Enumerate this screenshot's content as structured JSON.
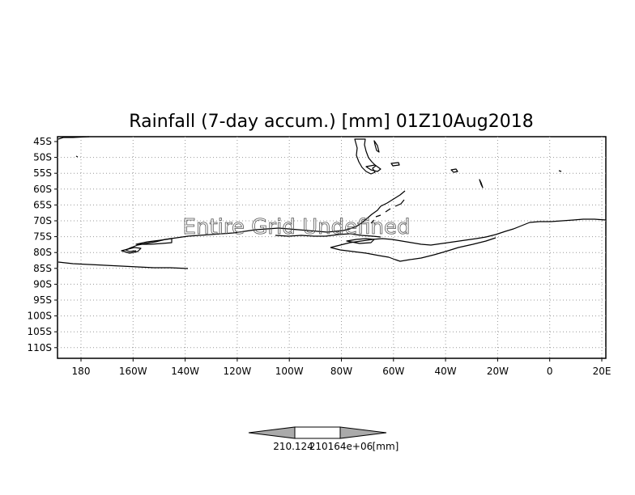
{
  "title": "Rainfall (7-day accum.) [mm] 01Z10Aug2018",
  "overlay_message": "Entire Grid Undefined",
  "y_ticks": [
    "45S",
    "50S",
    "55S",
    "60S",
    "65S",
    "70S",
    "75S",
    "80S",
    "85S",
    "90S",
    "95S",
    "100S",
    "105S",
    "110S"
  ],
  "x_ticks": [
    "180",
    "160W",
    "140W",
    "120W",
    "100W",
    "80W",
    "60W",
    "40W",
    "20W",
    "0",
    "20E"
  ],
  "colorbar": {
    "labels": [
      "210.124",
      "210164e+06",
      "[mm]"
    ],
    "fill_color": "#aaaaaa"
  },
  "colors": {
    "grid": "#999999",
    "coastline": "#000000"
  }
}
